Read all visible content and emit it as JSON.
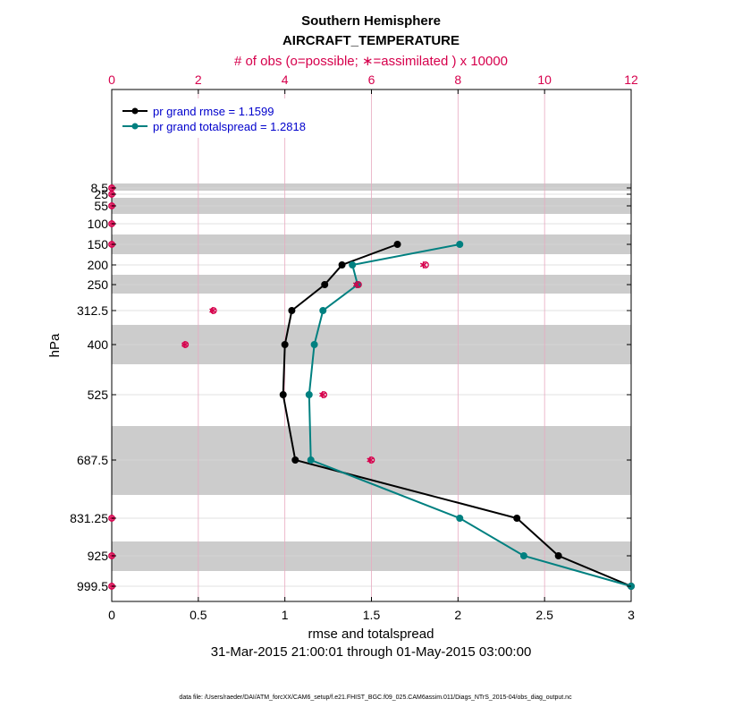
{
  "chart_data": {
    "type": "line",
    "title": "Southern Hemisphere",
    "subtitle": "AIRCRAFT_TEMPERATURE",
    "top_axis_label": "# of obs (o=possible; ∗=assimilated ) x 10000",
    "xlabel": "rmse and totalspread",
    "ylabel": "hPa",
    "date_range": "31-Mar-2015 21:00:01 through 01-May-2015 03:00:00",
    "footnote": "data file: /Users/raeder/DAI/ATM_forcXX/CAM6_setup/f.e21.FHIST_BGC.f09_025.CAM6assim.011/Diags_NTrS_2015-04/obs_diag_output.nc",
    "xlim": [
      0,
      3
    ],
    "x_ticks": [
      "0",
      "0.5",
      "1",
      "1.5",
      "2",
      "2.5",
      "3"
    ],
    "top_xlim": [
      0,
      12
    ],
    "top_ticks": [
      "0",
      "2",
      "4",
      "6",
      "8",
      "10",
      "12"
    ],
    "levels": [
      8.5,
      25,
      55,
      100,
      150,
      200,
      250,
      312.5,
      400,
      525,
      687.5,
      831.25,
      925,
      999.5
    ],
    "level_labels": [
      "8.5",
      "25",
      "55",
      "100",
      "150",
      "200",
      "250",
      "312.5",
      "400",
      "525",
      "687.5",
      "831.25",
      "925",
      "999.5"
    ],
    "series": [
      {
        "name": "pr grand rmse = 1.1599",
        "color": "#000000",
        "points": [
          {
            "level": 150,
            "value": 1.65
          },
          {
            "level": 200,
            "value": 1.33
          },
          {
            "level": 250,
            "value": 1.23
          },
          {
            "level": 312.5,
            "value": 1.04
          },
          {
            "level": 400,
            "value": 1.0
          },
          {
            "level": 525,
            "value": 0.99
          },
          {
            "level": 687.5,
            "value": 1.06
          },
          {
            "level": 831.25,
            "value": 2.34
          },
          {
            "level": 925,
            "value": 2.58
          },
          {
            "level": 999.5,
            "value": 3.0
          }
        ]
      },
      {
        "name": "pr grand totalspread = 1.2818",
        "color": "#008080",
        "points": [
          {
            "level": 150,
            "value": 2.01
          },
          {
            "level": 200,
            "value": 1.39
          },
          {
            "level": 250,
            "value": 1.42
          },
          {
            "level": 312.5,
            "value": 1.22
          },
          {
            "level": 400,
            "value": 1.17
          },
          {
            "level": 525,
            "value": 1.14
          },
          {
            "level": 687.5,
            "value": 1.15
          },
          {
            "level": 831.25,
            "value": 2.01
          },
          {
            "level": 925,
            "value": 2.38
          },
          {
            "level": 999.5,
            "value": 3.0
          }
        ]
      }
    ],
    "obs_counts": [
      {
        "level": 8.5,
        "possible": 0,
        "assimilated": 0
      },
      {
        "level": 25,
        "possible": 0,
        "assimilated": 0
      },
      {
        "level": 55,
        "possible": 0,
        "assimilated": 0
      },
      {
        "level": 100,
        "possible": 0,
        "assimilated": 0
      },
      {
        "level": 150,
        "possible": 0,
        "assimilated": 0
      },
      {
        "level": 200,
        "possible": 7.25,
        "assimilated": 7.2
      },
      {
        "level": 250,
        "possible": 5.7,
        "assimilated": 5.65
      },
      {
        "level": 312.5,
        "possible": 2.35,
        "assimilated": 2.33
      },
      {
        "level": 400,
        "possible": 1.7,
        "assimilated": 1.69
      },
      {
        "level": 525,
        "possible": 4.9,
        "assimilated": 4.87
      },
      {
        "level": 687.5,
        "possible": 6.0,
        "assimilated": 5.97
      },
      {
        "level": 831.25,
        "possible": 0,
        "assimilated": 0
      },
      {
        "level": 925,
        "possible": 0,
        "assimilated": 0
      },
      {
        "level": 999.5,
        "possible": 0,
        "assimilated": 0
      }
    ],
    "grid": true,
    "legend_position": "top-left"
  }
}
